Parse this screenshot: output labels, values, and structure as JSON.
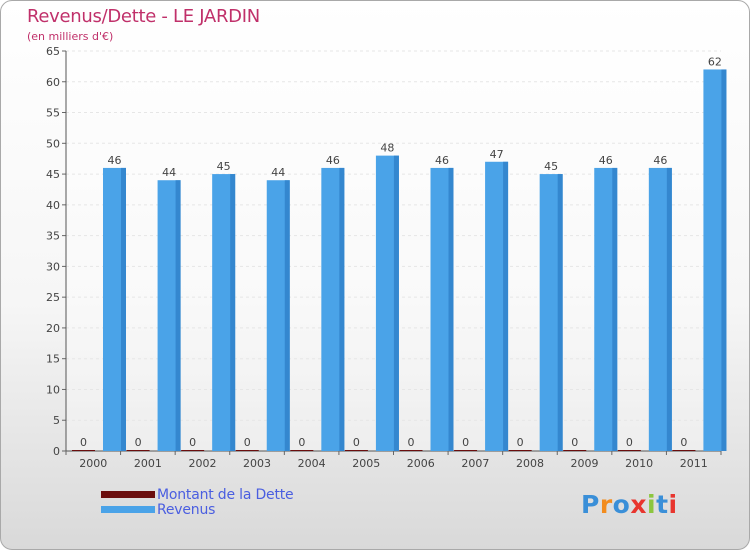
{
  "header": {
    "title": "Revenus/Dette - LE JARDIN",
    "subtitle": "(en milliers d'€)"
  },
  "legend": {
    "items": [
      {
        "label": "Montant de la Dette",
        "color": "#6b0e0e"
      },
      {
        "label": "Revenus",
        "color": "#4aa3e8"
      }
    ]
  },
  "logo": {
    "letters": [
      "P",
      "r",
      "o",
      "x",
      "i",
      "t",
      "i"
    ],
    "colors": [
      "#3a8fd8",
      "#f28c1e",
      "#3a8fd8",
      "#e8352e",
      "#8cc63f",
      "#3a8fd8",
      "#e8352e"
    ]
  },
  "chart_data": {
    "type": "bar",
    "title": "Revenus/Dette - LE JARDIN",
    "subtitle": "(en milliers d'€)",
    "categories": [
      "2000",
      "2001",
      "2002",
      "2003",
      "2004",
      "2005",
      "2006",
      "2007",
      "2008",
      "2009",
      "2010",
      "2011"
    ],
    "series": [
      {
        "name": "Montant de la Dette",
        "color": "#6b0e0e",
        "values": [
          0,
          0,
          0,
          0,
          0,
          0,
          0,
          0,
          0,
          0,
          0,
          0
        ]
      },
      {
        "name": "Revenus",
        "color": "#4aa3e8",
        "values": [
          46,
          44,
          45,
          44,
          46,
          48,
          46,
          47,
          45,
          46,
          46,
          62
        ]
      }
    ],
    "yticks": [
      0,
      5,
      10,
      15,
      20,
      25,
      30,
      35,
      40,
      45,
      50,
      55,
      60,
      65
    ],
    "ylim": [
      0,
      65
    ],
    "xlabel": "",
    "ylabel": "",
    "grid": true,
    "legend_position": "bottom-left"
  }
}
